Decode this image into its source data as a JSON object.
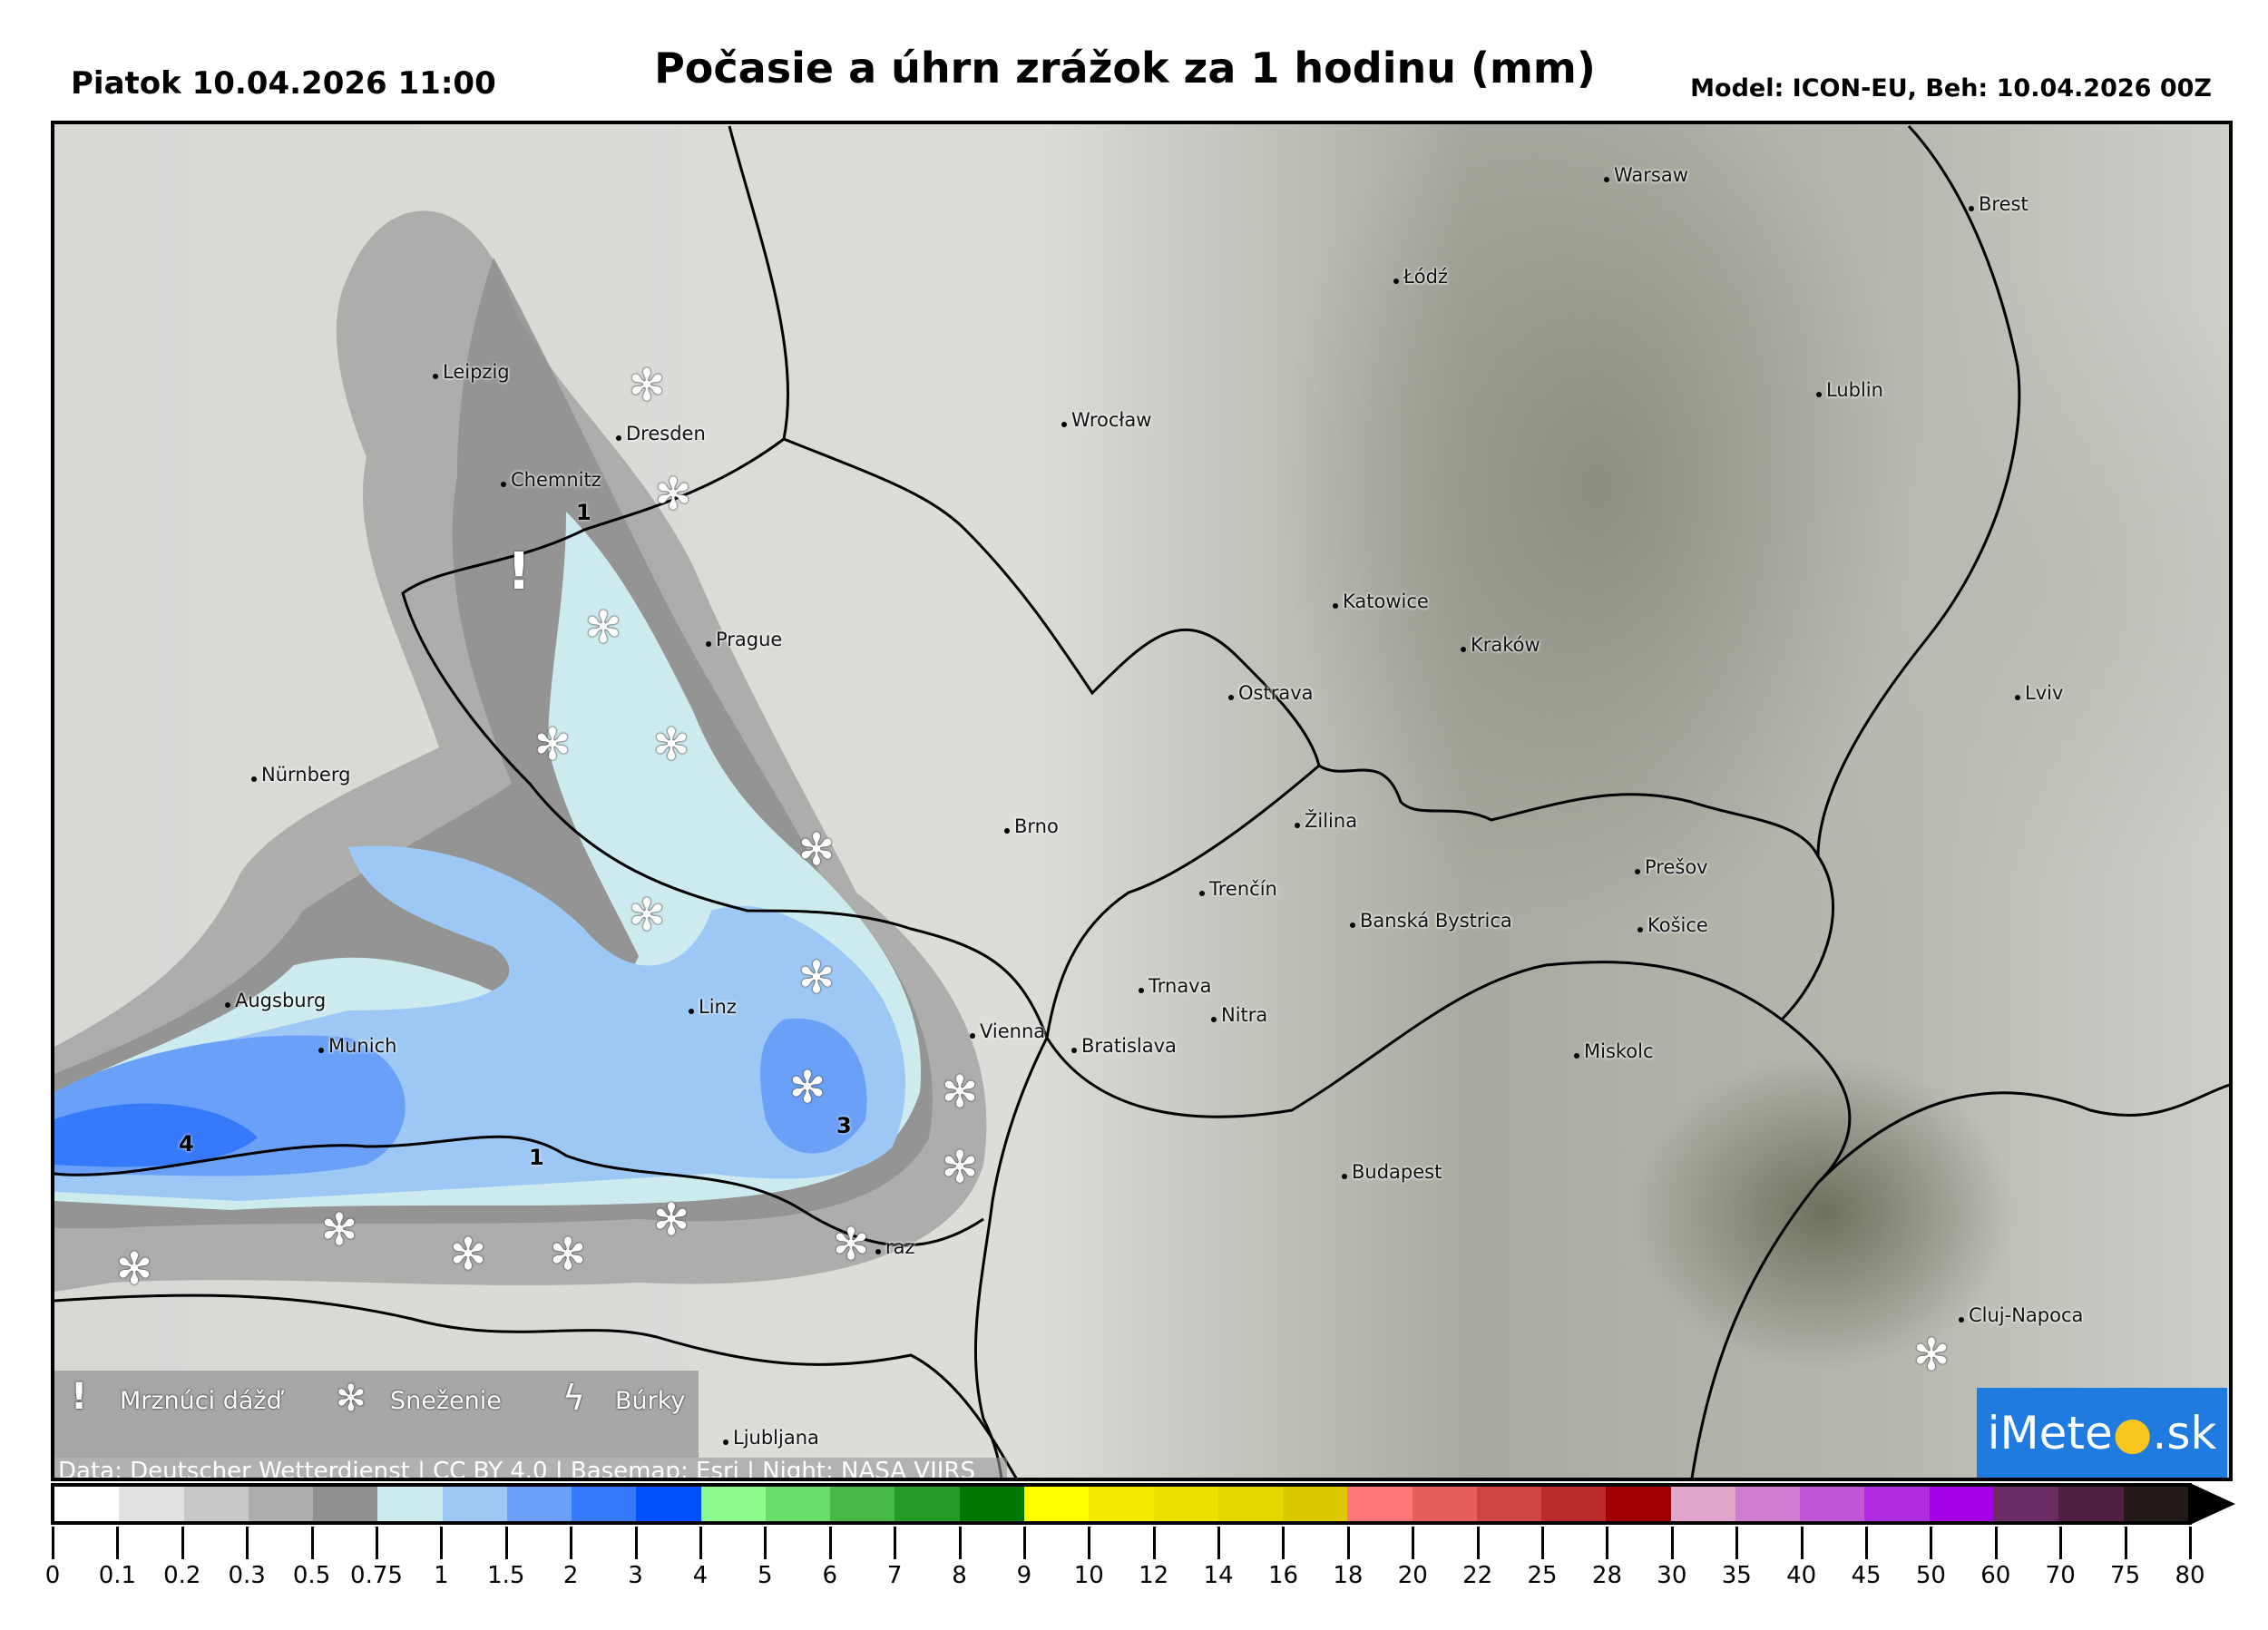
{
  "header": {
    "left": "Piatok 10.04.2026 11:00",
    "title": "Počasie a úhrn zrážok za 1 hodinu (mm)",
    "right": "Model: ICON-EU, Beh: 10.04.2026 00Z"
  },
  "cities": [
    "Warsaw",
    "Brest",
    "Łódź",
    "Lublin",
    "Leipzig",
    "Dresden",
    "Chemnitz",
    "Wrocław",
    "Prague",
    "Katowice",
    "Kraków",
    "Ostrava",
    "Lviv",
    "Nürnberg",
    "Brno",
    "Žilina",
    "Trenčín",
    "Prešov",
    "Banská Bystrica",
    "Košice",
    "Augsburg",
    "Linz",
    "Trnava",
    "Nitra",
    "Vienna",
    "Bratislava",
    "Munich",
    "Miskolc",
    "Budapest",
    "raz",
    "Cluj-Napoca",
    "Ljubljana"
  ],
  "precip_labels": [
    "1",
    "4",
    "1",
    "3"
  ],
  "legend": {
    "freezing_rain": "Mrznúci dážď",
    "snow": "Sneženie",
    "storms": "Búrky",
    "freezing_rain_icon": "exclamation-icon",
    "snow_icon": "snowflake-icon",
    "storms_icon": "lightning-icon"
  },
  "credit": "Data: Deutscher Wetterdienst | CC BY 4.0 | Basemap: Esri | Night: NASA VIIRS",
  "logo": "iMeteo.sk",
  "colorbar": {
    "ticks": [
      "0",
      "0.1",
      "0.2",
      "0.3",
      "0.5",
      "0.75",
      "1",
      "1.5",
      "2",
      "3",
      "4",
      "5",
      "6",
      "7",
      "8",
      "9",
      "10",
      "12",
      "14",
      "16",
      "18",
      "20",
      "22",
      "25",
      "28",
      "30",
      "35",
      "40",
      "45",
      "50",
      "60",
      "70",
      "75",
      "80"
    ],
    "colors": [
      "#ffffff",
      "#e2e2e2",
      "#c8c8c8",
      "#adadad",
      "#8f8f8f",
      "#cdebef",
      "#9dc8f5",
      "#6aa0f7",
      "#3679fb",
      "#0050ff",
      "#8cfb8c",
      "#69dd69",
      "#46b946",
      "#249b24",
      "#007800",
      "#ffff00",
      "#f6ea00",
      "#ece000",
      "#e4d700",
      "#dcc900",
      "#ff7878",
      "#e65f5a",
      "#d04541",
      "#b92a28",
      "#a10000",
      "#e2a6cc",
      "#d07cd2",
      "#c057d9",
      "#b02ae0",
      "#a300e6",
      "#6c2a62",
      "#502042",
      "#241a1a"
    ],
    "extend": "max"
  }
}
